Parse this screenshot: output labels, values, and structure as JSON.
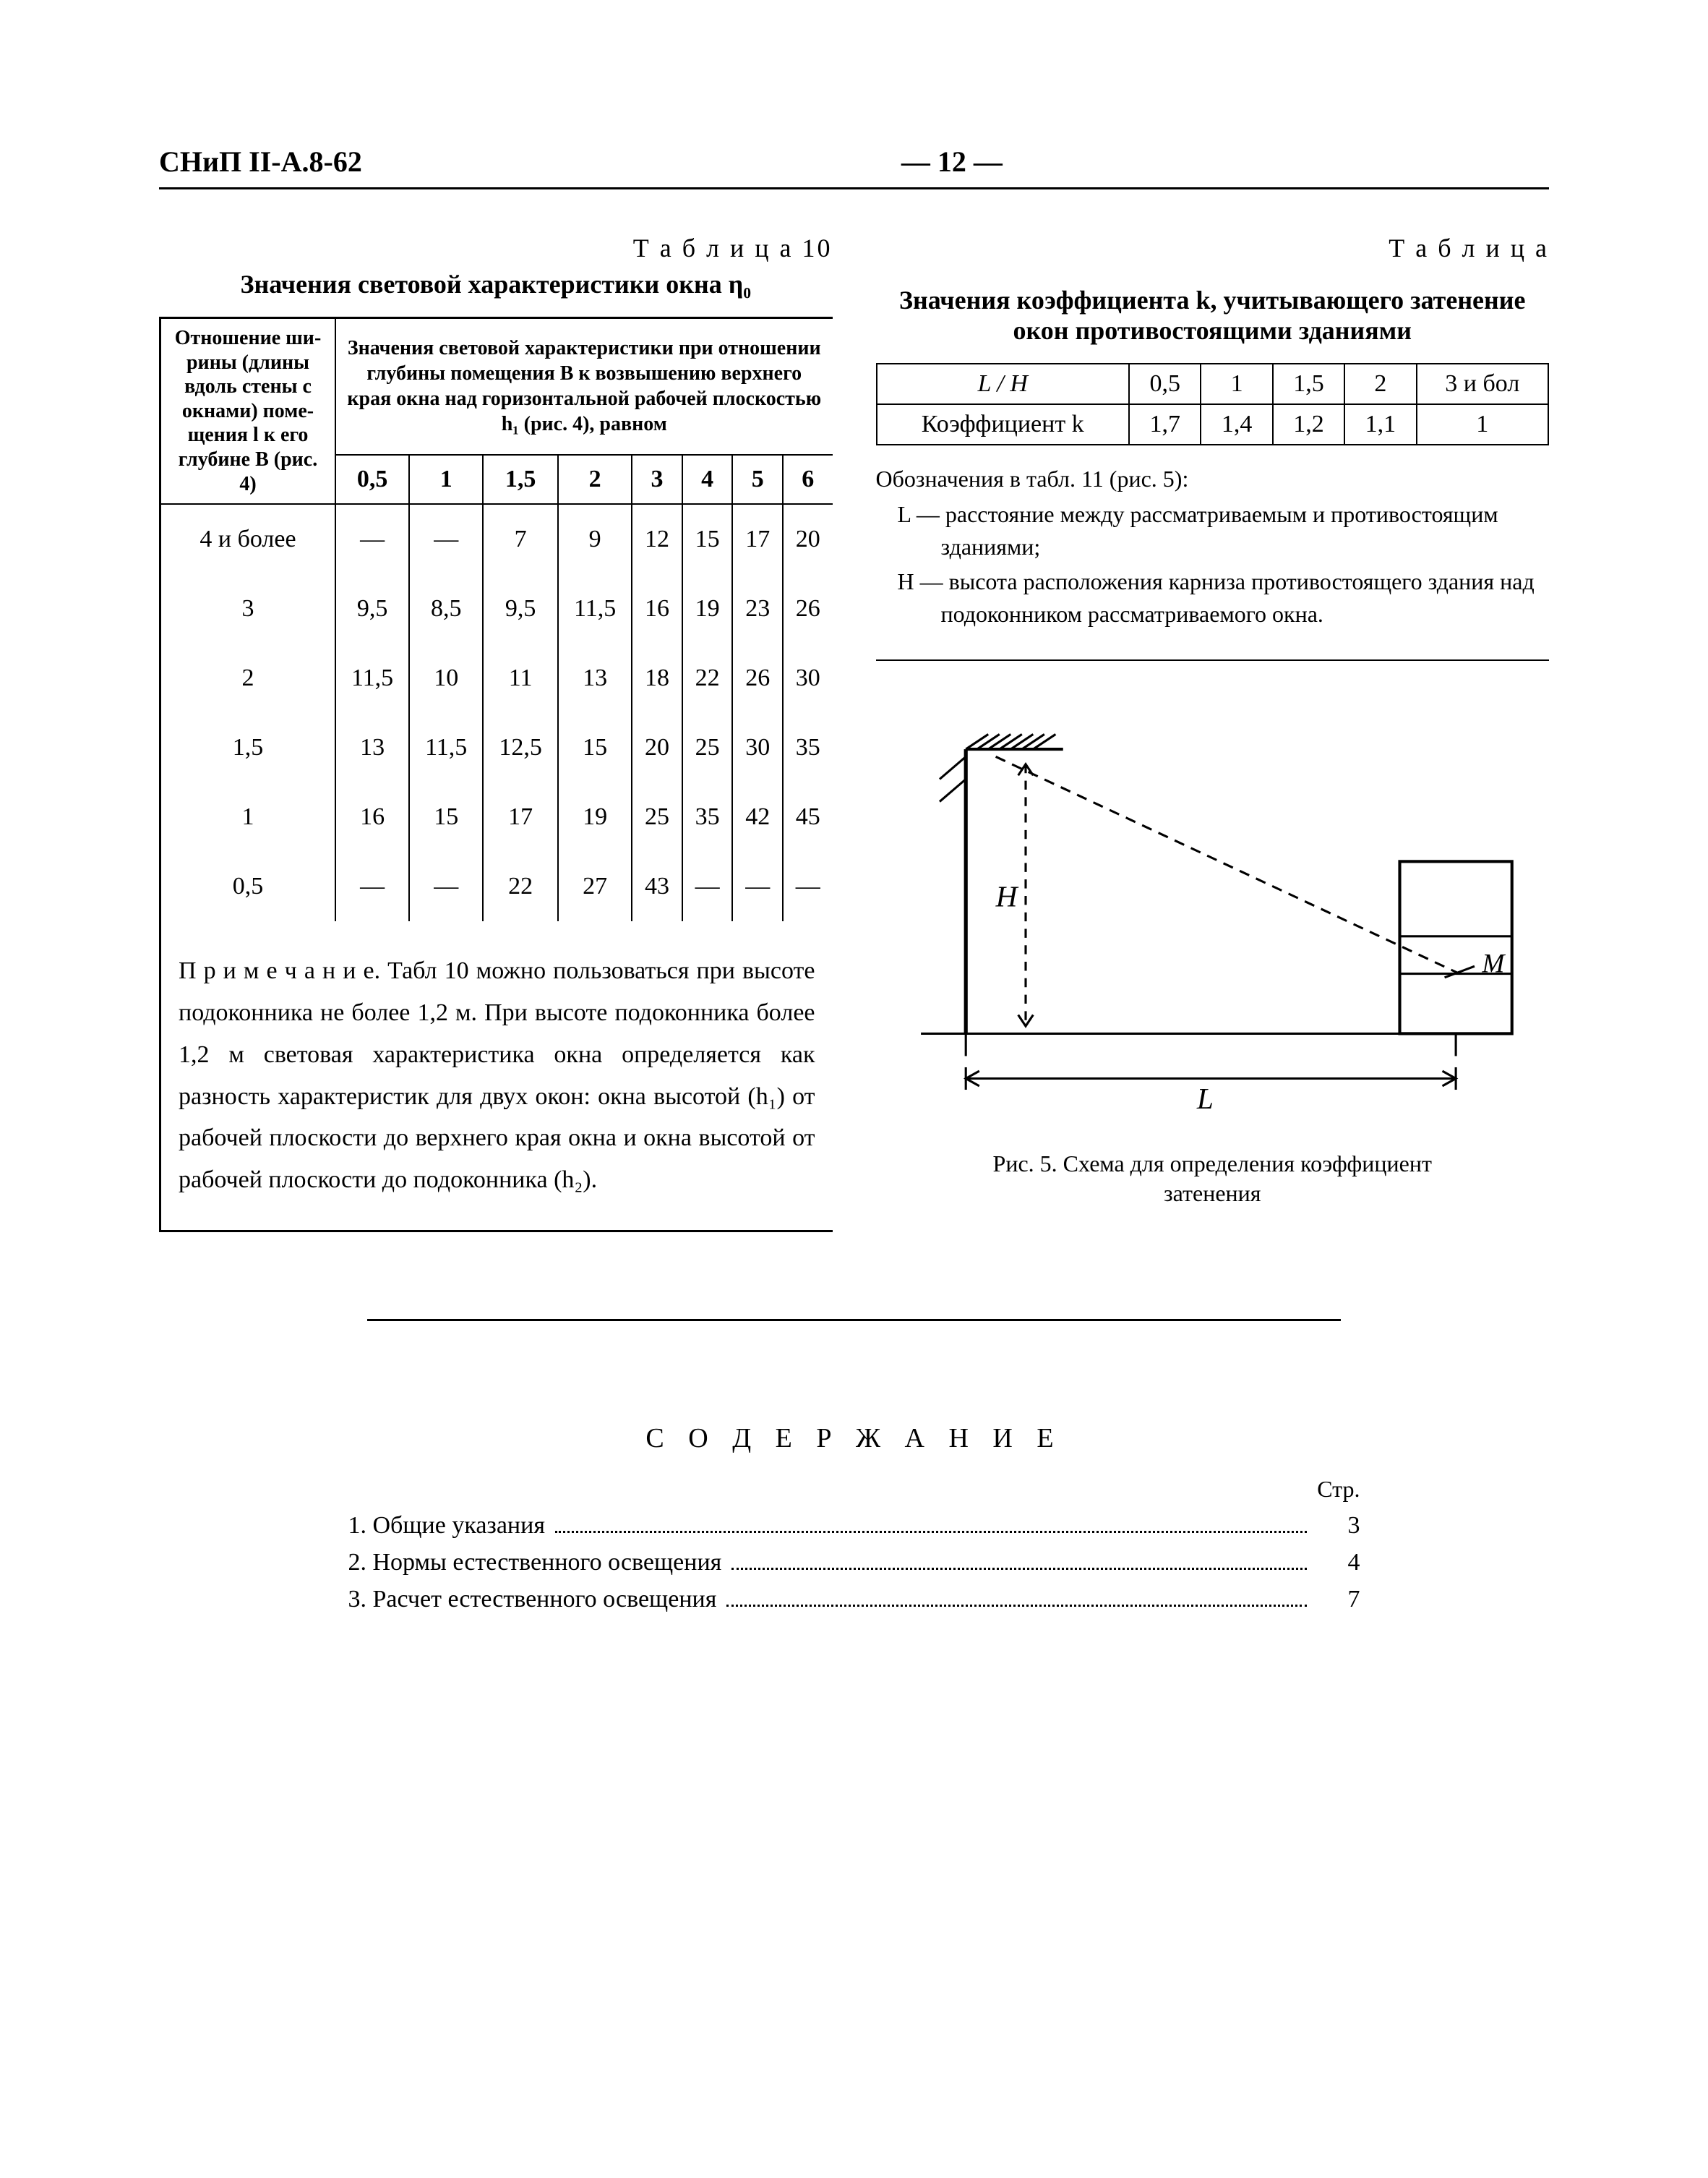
{
  "header": {
    "doc_code": "СНиП II-А.8-62",
    "page_no": "— 12 —"
  },
  "table10": {
    "label": "Т а б л и ц а  10",
    "title": "Значения световой характеристики окна η₀",
    "row_header": "Отношение ши­рины (длины вдоль стены с окнами) поме­щения l к его глубине B (рис. 4)",
    "group_header": "Значения световой характеристики при от­ношении глубины помещения B к возвыше­нию верхнего края окна над горизонтальной рабочей плоскостью h₁ (рис. 4), равном",
    "col_labels": [
      "0,5",
      "1",
      "1,5",
      "2",
      "3",
      "4",
      "5",
      "6"
    ],
    "rows": [
      {
        "label": "4 и более",
        "vals": [
          "—",
          "—",
          "7",
          "9",
          "12",
          "15",
          "17",
          "20"
        ]
      },
      {
        "label": "3",
        "vals": [
          "9,5",
          "8,5",
          "9,5",
          "11,5",
          "16",
          "19",
          "23",
          "26"
        ]
      },
      {
        "label": "2",
        "vals": [
          "11,5",
          "10",
          "11",
          "13",
          "18",
          "22",
          "26",
          "30"
        ]
      },
      {
        "label": "1,5",
        "vals": [
          "13",
          "11,5",
          "12,5",
          "15",
          "20",
          "25",
          "30",
          "35"
        ]
      },
      {
        "label": "1",
        "vals": [
          "16",
          "15",
          "17",
          "19",
          "25",
          "35",
          "42",
          "45"
        ]
      },
      {
        "label": "0,5",
        "vals": [
          "—",
          "—",
          "22",
          "27",
          "43",
          "—",
          "—",
          "—"
        ]
      }
    ],
    "note": "П р и м е ч а н и е. Табл 10 можно пользоваться при высоте подоконника не более 1,2 м. При высоте под­оконника более 1,2 м световая характеристика окна определяется как разность характеристик для двух окон: окна высотой (h₁) от рабочей плоскости до верхнего края окна и окна высотой от рабочей пло­скости до подоконника (h₂)."
  },
  "table11": {
    "label": "Т а б л и ц а",
    "title": "Значения коэффициента k, учитывающего затенение окон противостоящими зданиями",
    "row1_label": "L / H",
    "row1_vals": [
      "0,5",
      "1",
      "1,5",
      "2",
      "3 и бол"
    ],
    "row2_label": "Коэффициент k",
    "row2_vals": [
      "1,7",
      "1,4",
      "1,2",
      "1,1",
      "1"
    ],
    "legend_intro": "Обозначения в табл. 11 (рис. 5):",
    "legend_L": "L — расстояние между рассматриваемым и про­тивостоящим зданиями;",
    "legend_H": "H — высота расположения карниза противостоя­щего здания над подоконником рассматрива­емого окна."
  },
  "figure5": {
    "caption_line1": "Рис. 5. Схема для определения коэффициент",
    "caption_line2": "затенения",
    "labels": {
      "H": "H",
      "L": "L",
      "M": "M"
    },
    "colors": {
      "stroke": "#000000"
    }
  },
  "toc": {
    "title": "С О Д Е Р Ж А Н И Е",
    "page_label": "Стр.",
    "items": [
      {
        "text": "1. Общие указания",
        "page": "3"
      },
      {
        "text": "2. Нормы естественного освещения",
        "page": "4"
      },
      {
        "text": "3. Расчет естественного освещения",
        "page": "7"
      }
    ]
  }
}
